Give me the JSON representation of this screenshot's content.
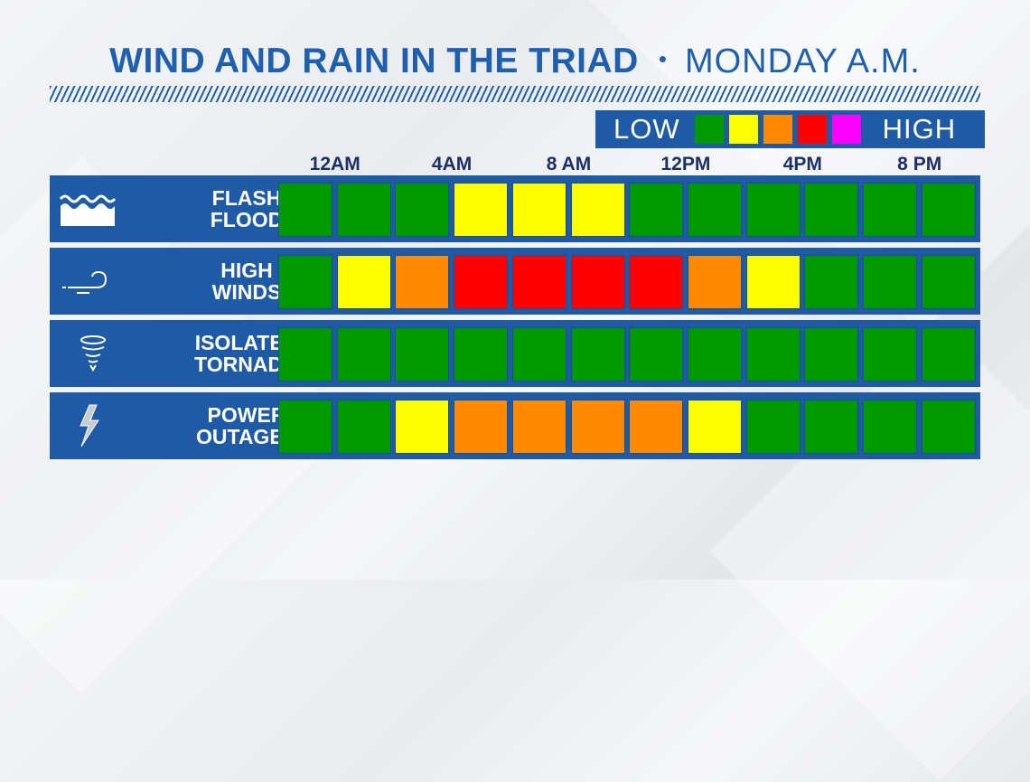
{
  "header": {
    "title": "WIND AND RAIN IN THE TRIAD",
    "separator": "•",
    "subtitle": "MONDAY A.M."
  },
  "legend": {
    "low_label": "LOW",
    "high_label": "HIGH",
    "levels": [
      "#009a00",
      "#ffff00",
      "#ff8a00",
      "#ff0000",
      "#ff00ff"
    ]
  },
  "times": {
    "labels": [
      "12AM",
      "4AM",
      "8 AM",
      "12PM",
      "4PM",
      "8 PM"
    ],
    "label_columns": [
      1,
      3,
      5,
      7,
      9,
      11
    ],
    "column_count": 12
  },
  "rows": [
    {
      "label": "FLASH\nFLOOD",
      "icon": "water-waves-icon",
      "levels": [
        0,
        0,
        0,
        1,
        1,
        1,
        0,
        0,
        0,
        0,
        0,
        0
      ]
    },
    {
      "label": "HIGH\nWINDS",
      "icon": "wind-icon",
      "levels": [
        0,
        1,
        2,
        3,
        3,
        3,
        3,
        2,
        1,
        0,
        0,
        0
      ]
    },
    {
      "label": "ISOLATED\nTORNADO",
      "icon": "tornado-icon",
      "levels": [
        0,
        0,
        0,
        0,
        0,
        0,
        0,
        0,
        0,
        0,
        0,
        0
      ]
    },
    {
      "label": "POWER\nOUTAGES",
      "icon": "lightning-bolt-icon",
      "levels": [
        0,
        0,
        1,
        2,
        2,
        2,
        2,
        1,
        0,
        0,
        0,
        0
      ]
    }
  ]
}
